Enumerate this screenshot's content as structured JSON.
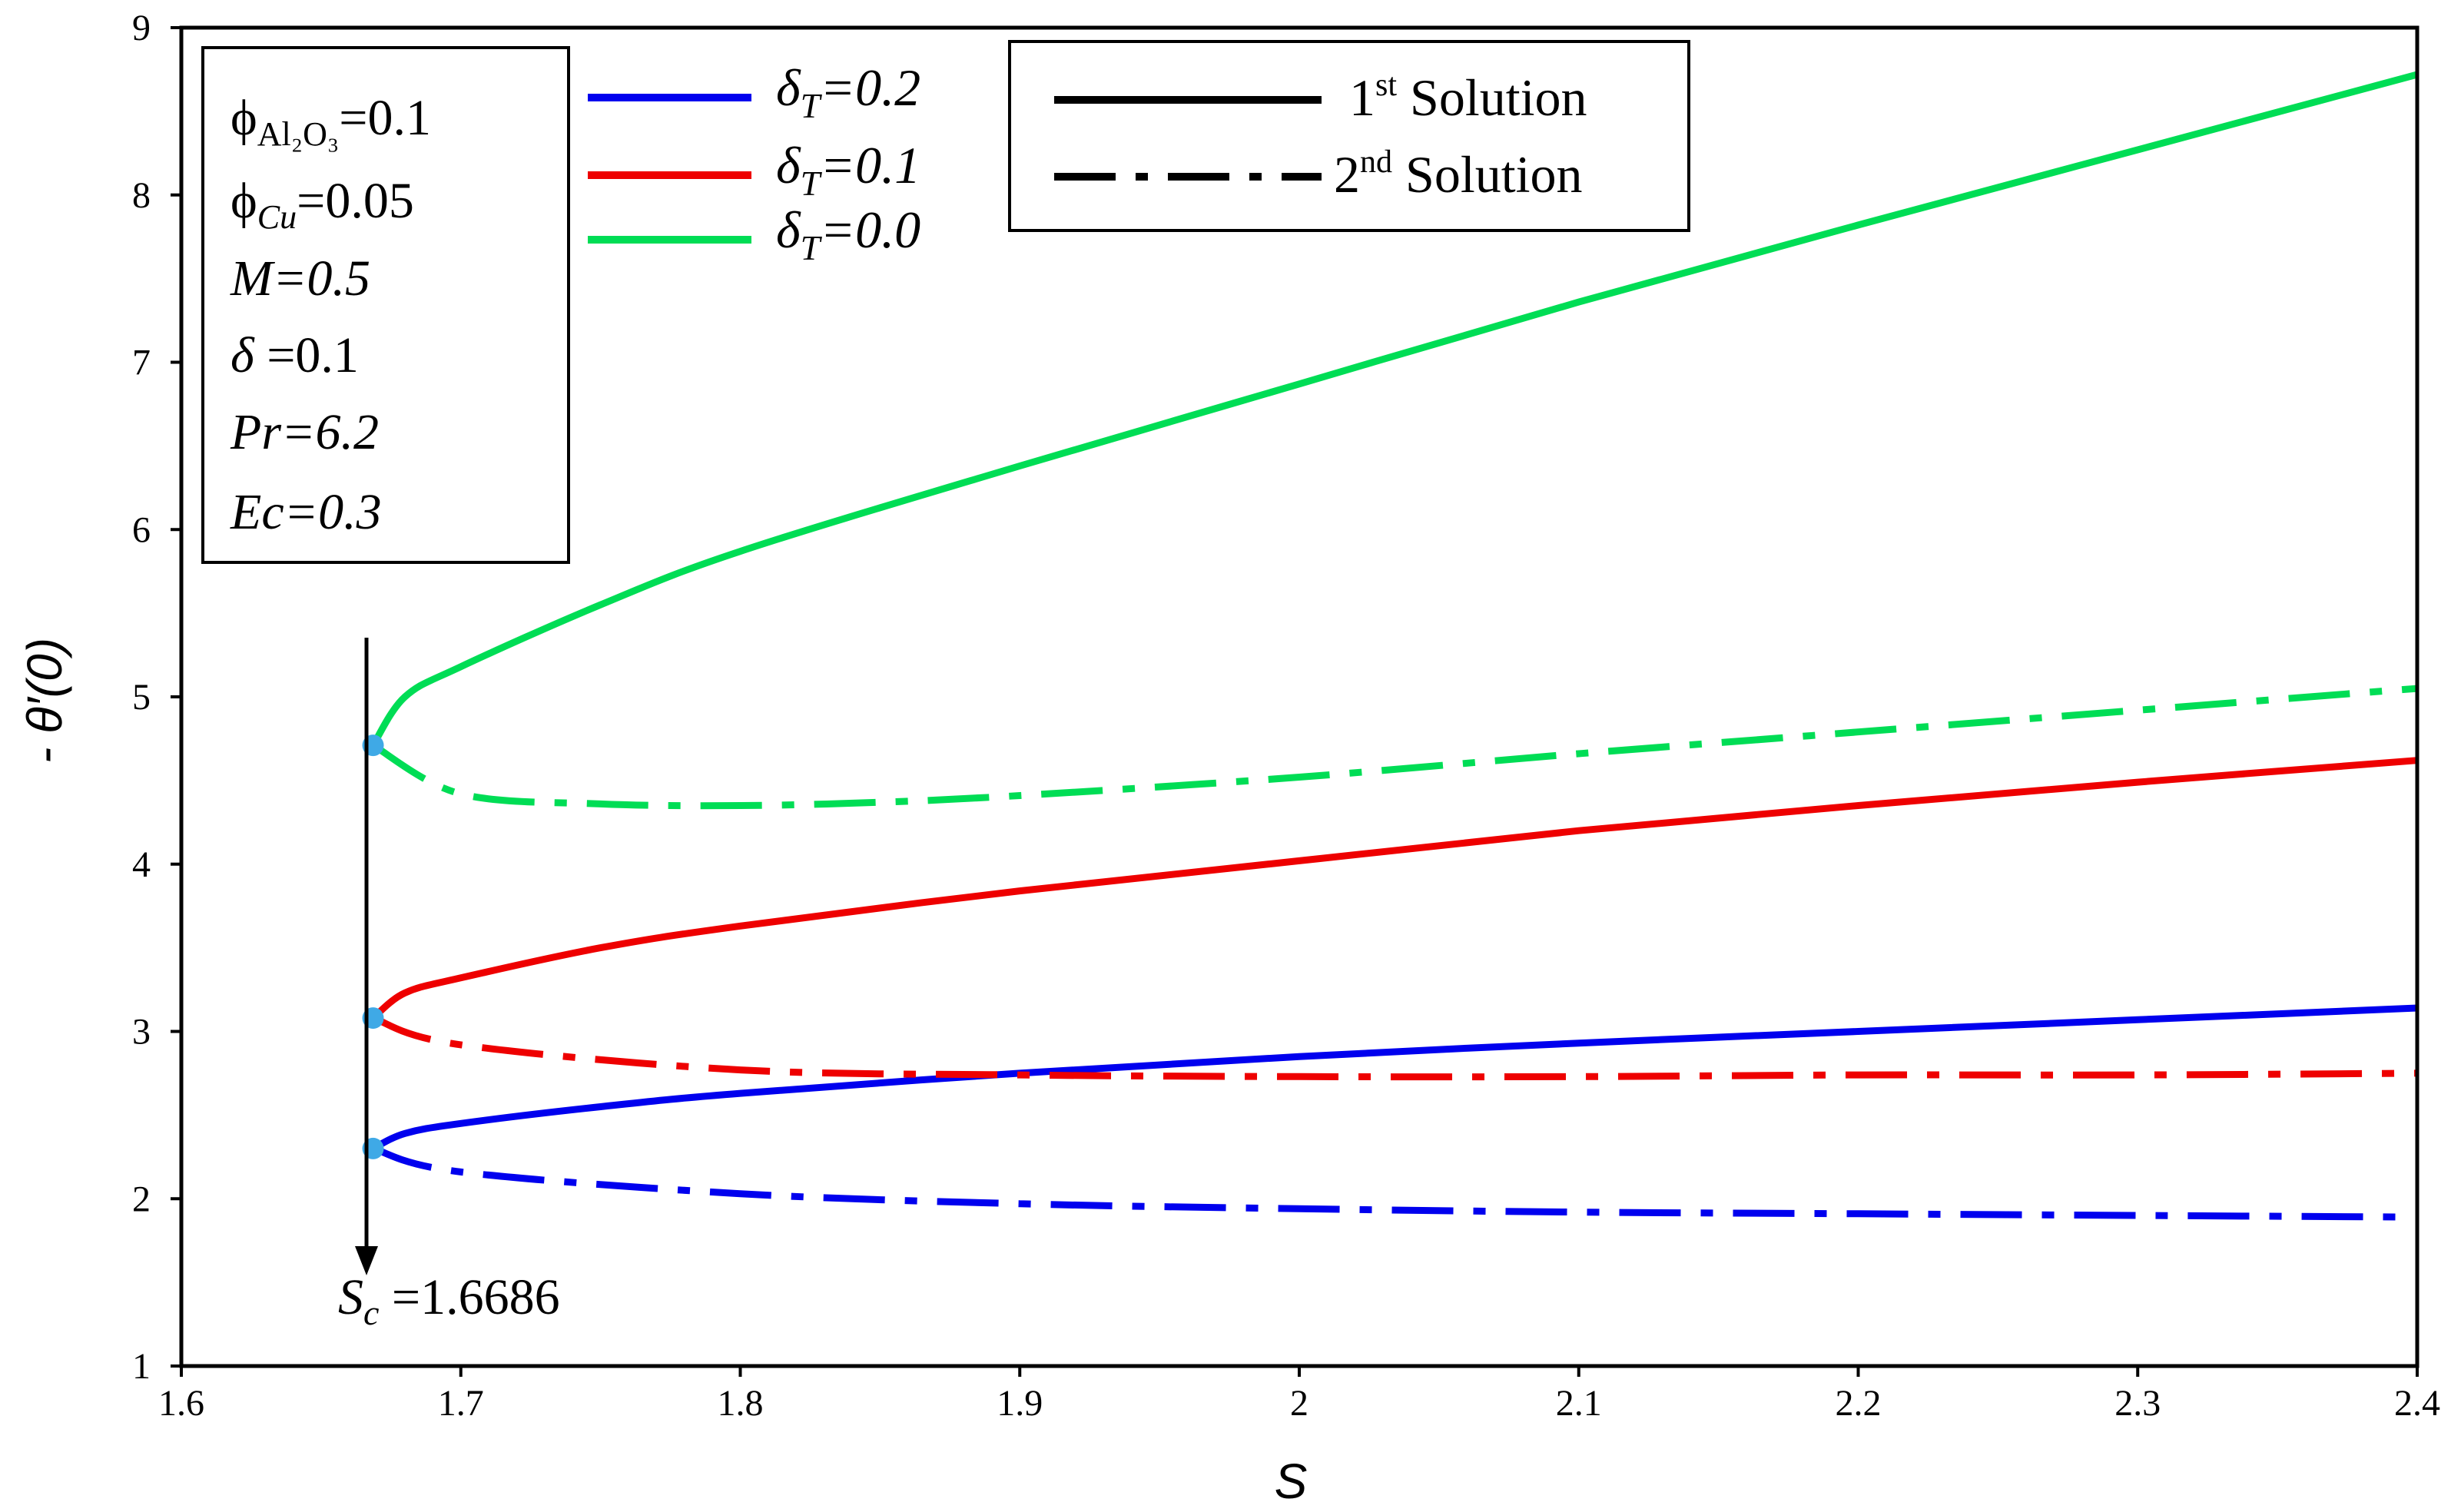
{
  "chart_data": {
    "type": "line",
    "xlabel": "S",
    "ylabel": "- θ′(0)",
    "xlim": [
      1.6,
      2.4
    ],
    "ylim": [
      1,
      9
    ],
    "x_ticks": [
      "1.6",
      "1.7",
      "1.8",
      "1.9",
      "2",
      "2.1",
      "2.2",
      "2.3",
      "2.4"
    ],
    "y_ticks": [
      "1",
      "2",
      "3",
      "4",
      "5",
      "6",
      "7",
      "8",
      "9"
    ],
    "grid": false,
    "colors": {
      "delta02": "#0000ee",
      "delta01": "#ee0000",
      "delta00": "#00dd55",
      "critical_point": "#3fa9e6"
    },
    "parameters": [
      {
        "label": "ϕ",
        "sub": "Al₂O₃",
        "value": "=0.1"
      },
      {
        "label": "ϕ",
        "sub": "Cu",
        "value": "=0.05"
      },
      {
        "label": "M",
        "value": "=0.5"
      },
      {
        "label": "δ",
        "value": " =0.1"
      },
      {
        "label": "Pr",
        "value": "=6.2"
      },
      {
        "label": "Ec",
        "value": "=0.3"
      }
    ],
    "legend_delta": [
      {
        "label": "δ",
        "sub": "T",
        "value": "=0.2",
        "color": "#0000ee"
      },
      {
        "label": "δ",
        "sub": "T",
        "value": "=0.1",
        "color": "#ee0000"
      },
      {
        "label": "δ",
        "sub": "T",
        "value": "=0.0",
        "color": "#00dd55"
      }
    ],
    "legend_solution": [
      {
        "num": "1",
        "sup": "st",
        "text": " Solution",
        "style": "solid"
      },
      {
        "num": "2",
        "sup": "nd",
        "text": " Solution",
        "style": "dash-dot"
      }
    ],
    "critical_annotation": {
      "label": "S",
      "sub": "c",
      "value": " =1.6686",
      "s_c": 1.6686
    },
    "series": [
      {
        "name": "δT=0.2 1st Solution",
        "color": "#0000ee",
        "style": "solid",
        "x": [
          1.6686,
          1.68,
          1.7,
          1.75,
          1.8,
          1.9,
          2.0,
          2.1,
          2.2,
          2.3,
          2.4
        ],
        "y": [
          2.3,
          2.39,
          2.45,
          2.55,
          2.63,
          2.75,
          2.85,
          2.93,
          3.0,
          3.07,
          3.14
        ]
      },
      {
        "name": "δT=0.2 2nd Solution",
        "color": "#0000ee",
        "style": "dash-dot",
        "x": [
          1.6686,
          1.7,
          1.8,
          1.9,
          2.0,
          2.1,
          2.2,
          2.3,
          2.4
        ],
        "y": [
          2.3,
          2.16,
          2.03,
          1.97,
          1.94,
          1.92,
          1.91,
          1.9,
          1.89
        ]
      },
      {
        "name": "δT=0.1 1st Solution",
        "color": "#ee0000",
        "style": "solid",
        "x": [
          1.6686,
          1.68,
          1.7,
          1.75,
          1.8,
          1.9,
          2.0,
          2.1,
          2.2,
          2.3,
          2.4
        ],
        "y": [
          3.08,
          3.23,
          3.32,
          3.5,
          3.63,
          3.84,
          4.02,
          4.2,
          4.35,
          4.49,
          4.62
        ]
      },
      {
        "name": "δT=0.1 2nd Solution",
        "color": "#ee0000",
        "style": "dash-dot",
        "x": [
          1.6686,
          1.7,
          1.8,
          1.9,
          2.0,
          2.1,
          2.2,
          2.3,
          2.4
        ],
        "y": [
          3.08,
          2.92,
          2.77,
          2.74,
          2.73,
          2.73,
          2.74,
          2.74,
          2.75
        ]
      },
      {
        "name": "δT=0.0 1st Solution",
        "color": "#00dd55",
        "style": "solid",
        "x": [
          1.6686,
          1.68,
          1.7,
          1.75,
          1.8,
          1.9,
          2.0,
          2.1,
          2.2,
          2.3,
          2.4
        ],
        "y": [
          4.71,
          5.0,
          5.18,
          5.55,
          5.87,
          6.38,
          6.87,
          7.36,
          7.82,
          8.27,
          8.72
        ]
      },
      {
        "name": "δT=0.0 2nd Solution",
        "color": "#00dd55",
        "style": "dash-dot",
        "x": [
          1.6686,
          1.7,
          1.75,
          1.8,
          1.85,
          1.9,
          2.0,
          2.1,
          2.2,
          2.3,
          2.4
        ],
        "y": [
          4.71,
          4.42,
          4.36,
          4.35,
          4.37,
          4.41,
          4.52,
          4.66,
          4.79,
          4.92,
          5.05
        ]
      }
    ],
    "critical_points": [
      {
        "x": 1.6686,
        "y": 4.71
      },
      {
        "x": 1.6686,
        "y": 3.08
      },
      {
        "x": 1.6686,
        "y": 2.3
      }
    ]
  }
}
